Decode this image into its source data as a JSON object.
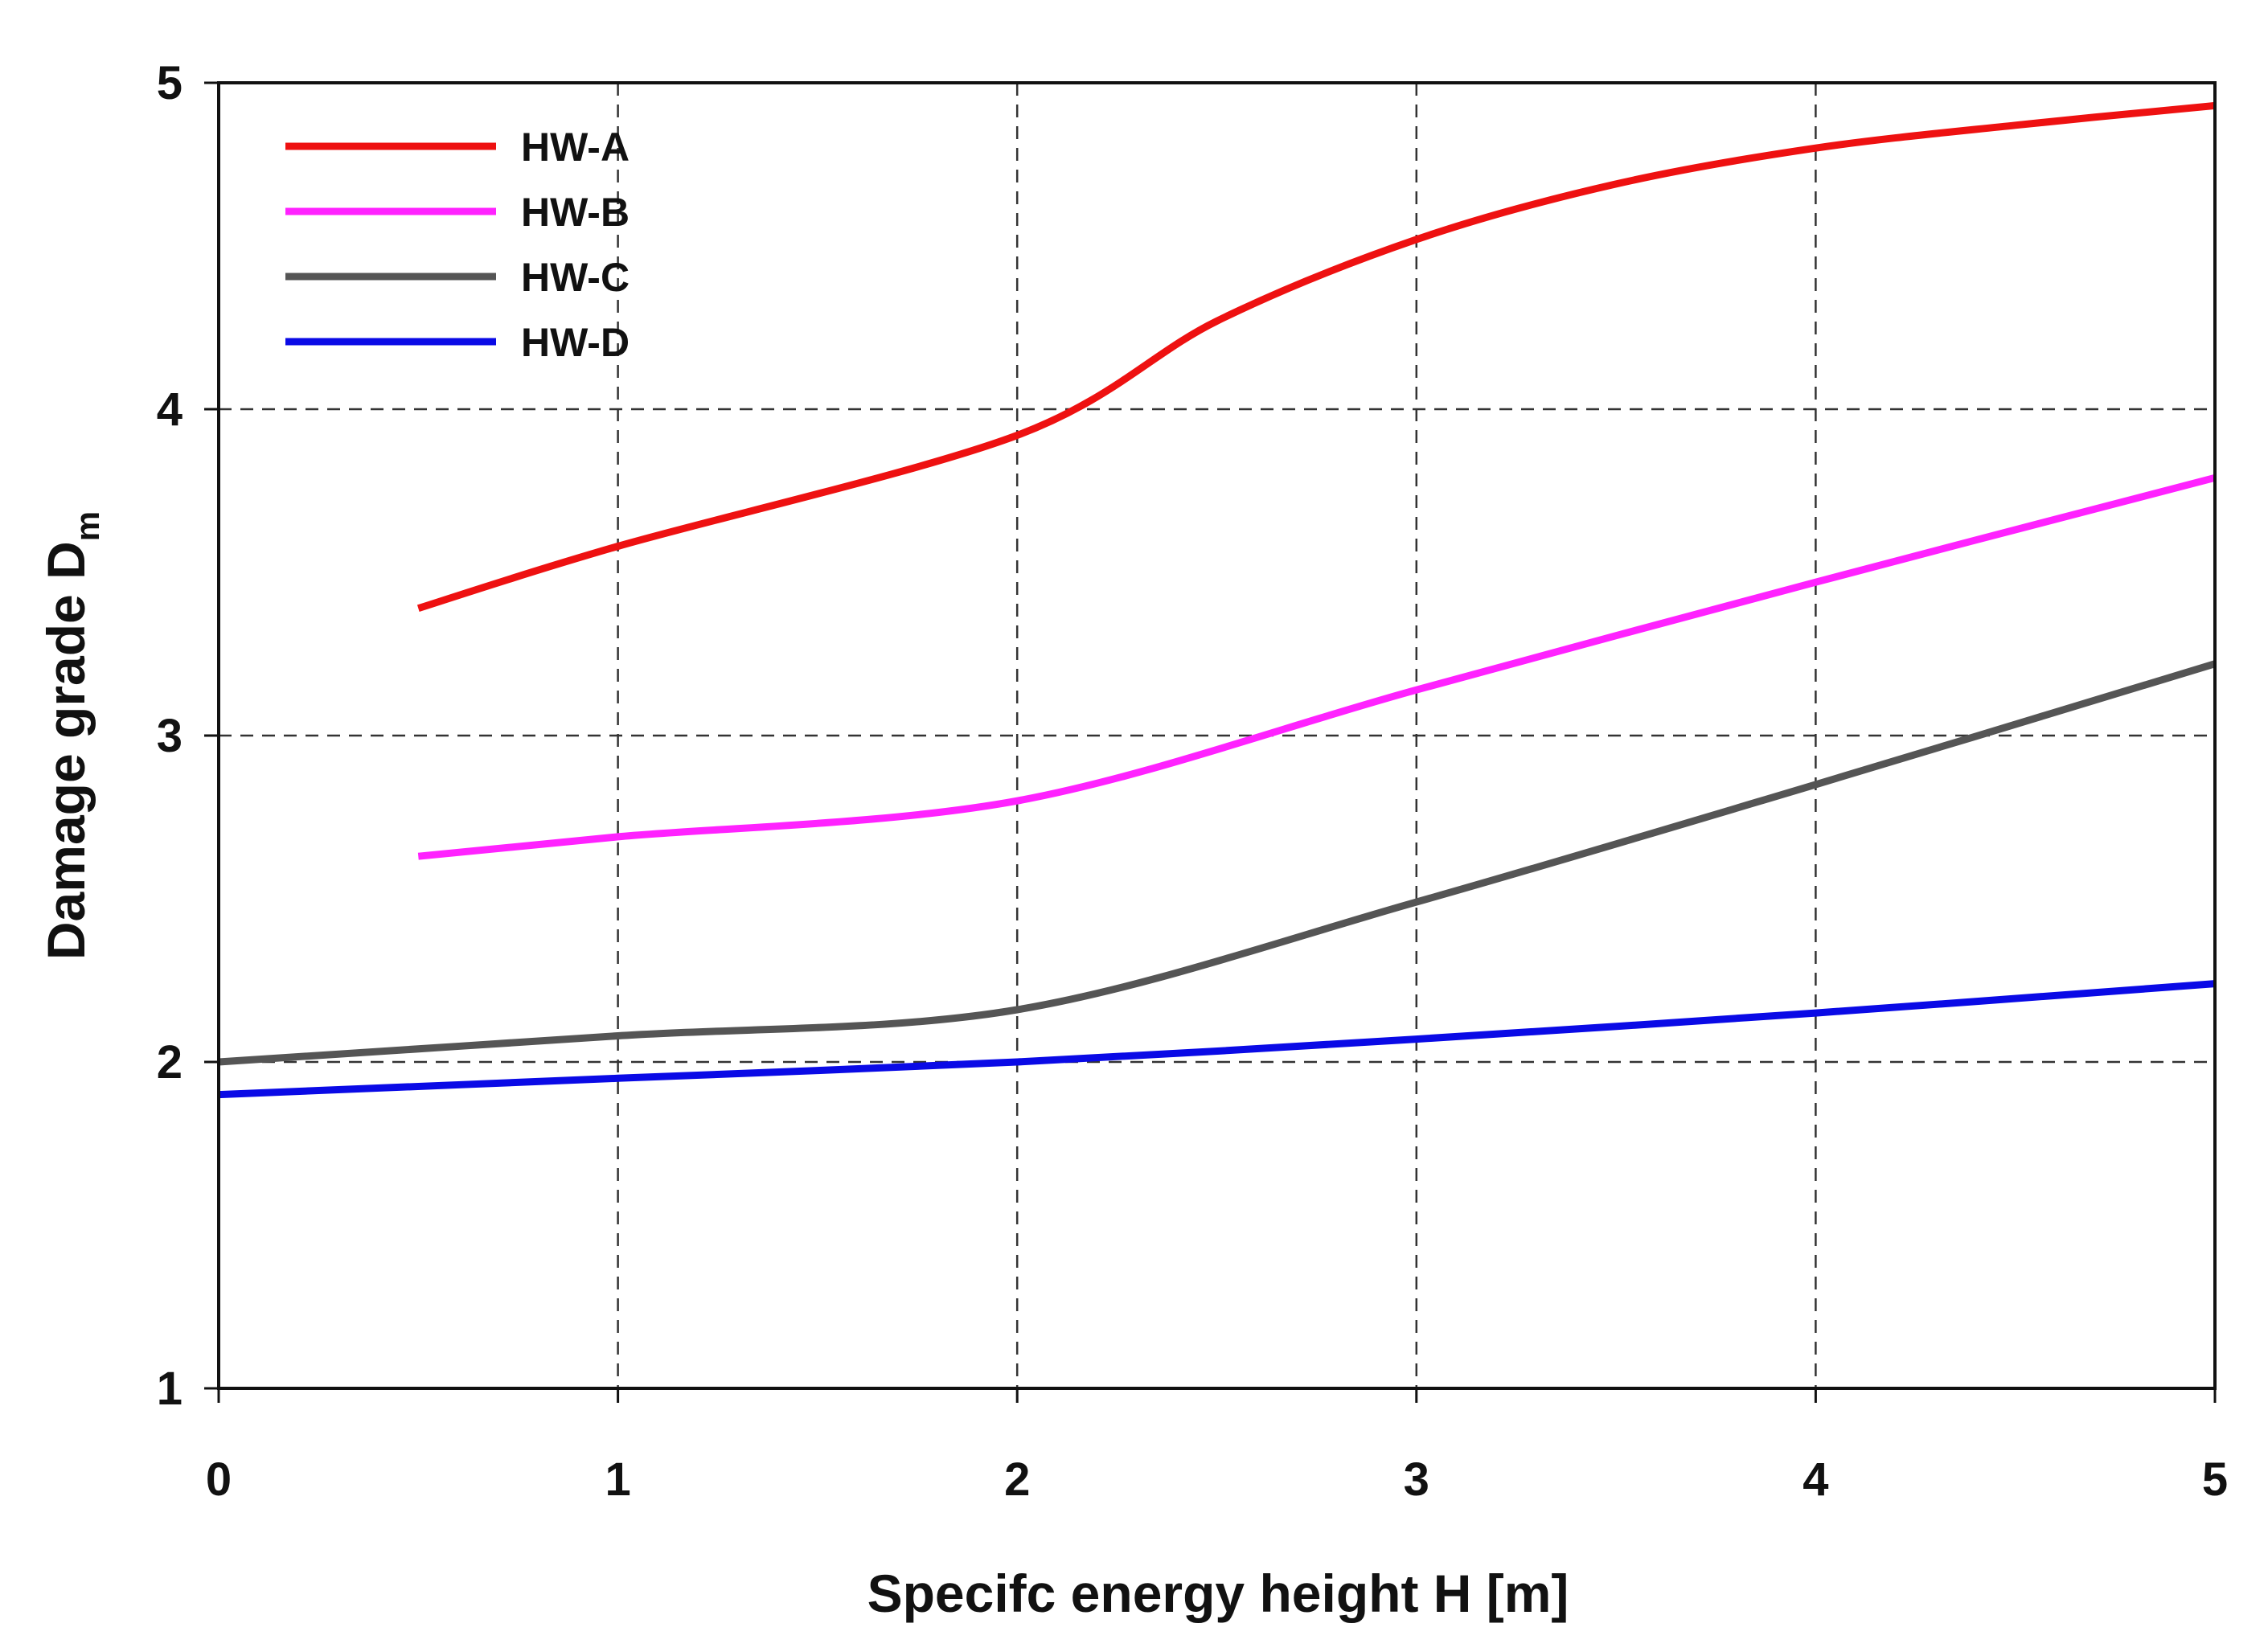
{
  "chart_data": {
    "type": "line",
    "title": "",
    "xlabel": "Specifc energy height H [m]",
    "ylabel": "Damage grade D",
    "ylabel_subscript": "m",
    "xlim": [
      0,
      5
    ],
    "ylim": [
      1,
      5
    ],
    "x_ticks": [
      "0",
      "1",
      "2",
      "3",
      "4",
      "5"
    ],
    "y_ticks": [
      "1",
      "2",
      "3",
      "4",
      "5"
    ],
    "grid": "dashed, major ticks",
    "legend_position": "top-left",
    "series": [
      {
        "name": "HW-A",
        "color": "#ee1111",
        "x": [
          0.5,
          1,
          2,
          2.5,
          3,
          3.5,
          4,
          4.5,
          5
        ],
        "y": [
          3.39,
          3.58,
          3.92,
          4.27,
          4.52,
          4.69,
          4.8,
          4.87,
          4.93
        ]
      },
      {
        "name": "HW-B",
        "color": "#ff22ff",
        "x": [
          0.5,
          1,
          2,
          3,
          4,
          5
        ],
        "y": [
          2.63,
          2.69,
          2.8,
          3.14,
          3.47,
          3.79
        ]
      },
      {
        "name": "HW-C",
        "color": "#555555",
        "x": [
          0,
          1,
          2,
          3,
          4,
          5
        ],
        "y": [
          2.0,
          2.08,
          2.16,
          2.49,
          2.85,
          3.22
        ]
      },
      {
        "name": "HW-D",
        "color": "#0a0ae6",
        "x": [
          0,
          1,
          2,
          3,
          4,
          5
        ],
        "y": [
          1.9,
          1.95,
          2.0,
          2.07,
          2.15,
          2.24
        ]
      }
    ]
  }
}
